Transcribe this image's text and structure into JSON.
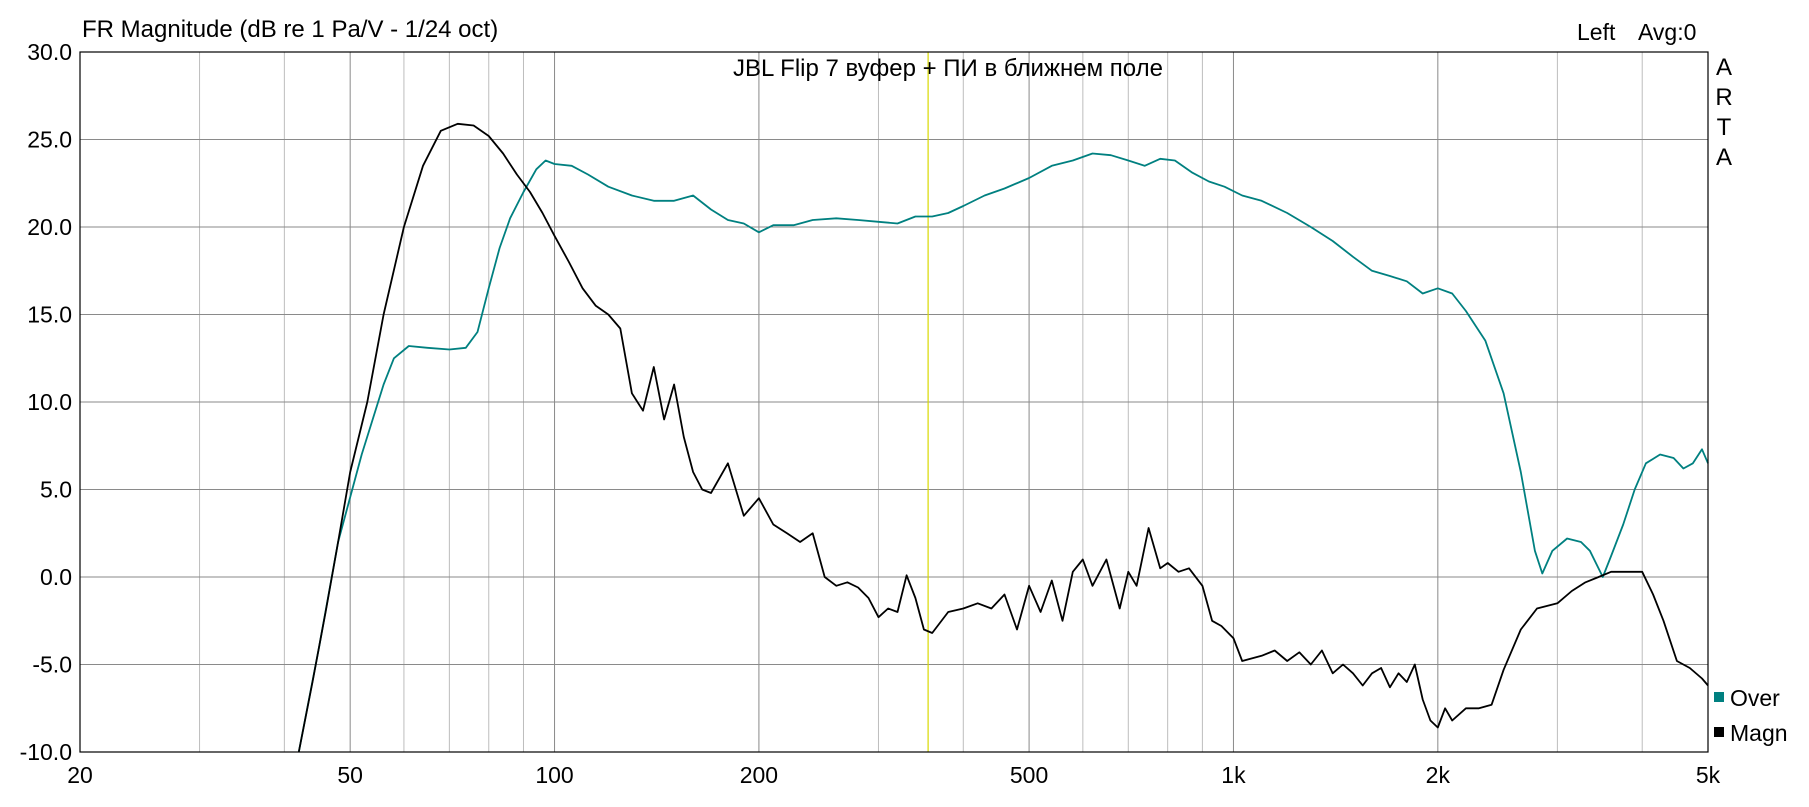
{
  "chart_data": {
    "type": "line",
    "title": "FR Magnitude (dB re 1 Pa/V - 1/24 oct)",
    "annotation": "JBL Flip 7 вуфер + ПИ в ближнем поле",
    "status_left": "Left",
    "status_avg": "Avg:0",
    "logo_letters": [
      "A",
      "R",
      "T",
      "A"
    ],
    "x_scale": "log",
    "xlim": [
      20,
      5000
    ],
    "ylim": [
      -10,
      30
    ],
    "grid": true,
    "x_ticks": [
      20,
      50,
      100,
      200,
      500,
      1000,
      2000,
      5000
    ],
    "x_tick_labels": [
      "20",
      "50",
      "100",
      "200",
      "500",
      "1k",
      "2k",
      "5k"
    ],
    "y_ticks": [
      30,
      25,
      20,
      15,
      10,
      5,
      0,
      -5,
      -10
    ],
    "y_tick_labels": [
      "30.0",
      "25.0",
      "20.0",
      "15.0",
      "10.0",
      "5.0",
      "0.0",
      "-5.0",
      "-10.0"
    ],
    "marker_frequency": 355,
    "marker_color": "#d8d800",
    "legend_position": "bottom-right",
    "series": [
      {
        "name": "Over",
        "color": "#008080",
        "points": [
          [
            42,
            -10
          ],
          [
            45,
            -4
          ],
          [
            48,
            2
          ],
          [
            52,
            7
          ],
          [
            56,
            11
          ],
          [
            58,
            12.5
          ],
          [
            61,
            13.2
          ],
          [
            65,
            13.1
          ],
          [
            70,
            13
          ],
          [
            74,
            13.1
          ],
          [
            77,
            14
          ],
          [
            80,
            16.5
          ],
          [
            83,
            18.8
          ],
          [
            86,
            20.5
          ],
          [
            90,
            22
          ],
          [
            94,
            23.3
          ],
          [
            97,
            23.8
          ],
          [
            100,
            23.6
          ],
          [
            106,
            23.5
          ],
          [
            112,
            23
          ],
          [
            120,
            22.3
          ],
          [
            130,
            21.8
          ],
          [
            140,
            21.5
          ],
          [
            150,
            21.5
          ],
          [
            160,
            21.8
          ],
          [
            170,
            21
          ],
          [
            180,
            20.4
          ],
          [
            190,
            20.2
          ],
          [
            200,
            19.7
          ],
          [
            210,
            20.1
          ],
          [
            225,
            20.1
          ],
          [
            240,
            20.4
          ],
          [
            260,
            20.5
          ],
          [
            280,
            20.4
          ],
          [
            300,
            20.3
          ],
          [
            320,
            20.2
          ],
          [
            340,
            20.6
          ],
          [
            360,
            20.6
          ],
          [
            380,
            20.8
          ],
          [
            400,
            21.2
          ],
          [
            430,
            21.8
          ],
          [
            460,
            22.2
          ],
          [
            500,
            22.8
          ],
          [
            540,
            23.5
          ],
          [
            580,
            23.8
          ],
          [
            620,
            24.2
          ],
          [
            660,
            24.1
          ],
          [
            700,
            23.8
          ],
          [
            740,
            23.5
          ],
          [
            780,
            23.9
          ],
          [
            820,
            23.8
          ],
          [
            870,
            23.1
          ],
          [
            920,
            22.6
          ],
          [
            970,
            22.3
          ],
          [
            1030,
            21.8
          ],
          [
            1100,
            21.5
          ],
          [
            1200,
            20.8
          ],
          [
            1300,
            20
          ],
          [
            1400,
            19.2
          ],
          [
            1500,
            18.3
          ],
          [
            1600,
            17.5
          ],
          [
            1700,
            17.2
          ],
          [
            1800,
            16.9
          ],
          [
            1900,
            16.2
          ],
          [
            2000,
            16.5
          ],
          [
            2100,
            16.2
          ],
          [
            2200,
            15.2
          ],
          [
            2350,
            13.5
          ],
          [
            2500,
            10.5
          ],
          [
            2650,
            6
          ],
          [
            2780,
            1.5
          ],
          [
            2850,
            0.2
          ],
          [
            2950,
            1.5
          ],
          [
            3100,
            2.2
          ],
          [
            3250,
            2
          ],
          [
            3350,
            1.5
          ],
          [
            3500,
            0
          ],
          [
            3600,
            1.2
          ],
          [
            3750,
            3
          ],
          [
            3900,
            5
          ],
          [
            4050,
            6.5
          ],
          [
            4250,
            7
          ],
          [
            4450,
            6.8
          ],
          [
            4600,
            6.2
          ],
          [
            4750,
            6.5
          ],
          [
            4900,
            7.3
          ],
          [
            5000,
            6.5
          ]
        ]
      },
      {
        "name": "Magn",
        "color": "#000000",
        "points": [
          [
            42,
            -10
          ],
          [
            44,
            -6
          ],
          [
            46,
            -2
          ],
          [
            48,
            2
          ],
          [
            50,
            6
          ],
          [
            53,
            10
          ],
          [
            56,
            15
          ],
          [
            60,
            20
          ],
          [
            64,
            23.5
          ],
          [
            68,
            25.5
          ],
          [
            72,
            25.9
          ],
          [
            76,
            25.8
          ],
          [
            80,
            25.2
          ],
          [
            84,
            24.2
          ],
          [
            88,
            23
          ],
          [
            92,
            22
          ],
          [
            96,
            20.8
          ],
          [
            100,
            19.5
          ],
          [
            105,
            18
          ],
          [
            110,
            16.5
          ],
          [
            115,
            15.5
          ],
          [
            120,
            15
          ],
          [
            125,
            14.2
          ],
          [
            130,
            10.5
          ],
          [
            135,
            9.5
          ],
          [
            140,
            12
          ],
          [
            145,
            9
          ],
          [
            150,
            11
          ],
          [
            155,
            8
          ],
          [
            160,
            6
          ],
          [
            165,
            5
          ],
          [
            170,
            4.8
          ],
          [
            180,
            6.5
          ],
          [
            190,
            3.5
          ],
          [
            200,
            4.5
          ],
          [
            210,
            3
          ],
          [
            220,
            2.5
          ],
          [
            230,
            2
          ],
          [
            240,
            2.5
          ],
          [
            250,
            0
          ],
          [
            260,
            -0.5
          ],
          [
            270,
            -0.3
          ],
          [
            280,
            -0.6
          ],
          [
            290,
            -1.2
          ],
          [
            300,
            -2.3
          ],
          [
            310,
            -1.8
          ],
          [
            320,
            -2
          ],
          [
            330,
            0.1
          ],
          [
            340,
            -1.2
          ],
          [
            350,
            -3
          ],
          [
            360,
            -3.2
          ],
          [
            380,
            -2
          ],
          [
            400,
            -1.8
          ],
          [
            420,
            -1.5
          ],
          [
            440,
            -1.8
          ],
          [
            460,
            -1
          ],
          [
            480,
            -3
          ],
          [
            500,
            -0.5
          ],
          [
            520,
            -2
          ],
          [
            540,
            -0.2
          ],
          [
            560,
            -2.5
          ],
          [
            580,
            0.3
          ],
          [
            600,
            1
          ],
          [
            620,
            -0.5
          ],
          [
            650,
            1
          ],
          [
            680,
            -1.8
          ],
          [
            700,
            0.3
          ],
          [
            720,
            -0.5
          ],
          [
            750,
            2.8
          ],
          [
            780,
            0.5
          ],
          [
            800,
            0.8
          ],
          [
            830,
            0.3
          ],
          [
            860,
            0.5
          ],
          [
            900,
            -0.5
          ],
          [
            930,
            -2.5
          ],
          [
            960,
            -2.8
          ],
          [
            1000,
            -3.5
          ],
          [
            1030,
            -4.8
          ],
          [
            1100,
            -4.5
          ],
          [
            1150,
            -4.2
          ],
          [
            1200,
            -4.8
          ],
          [
            1250,
            -4.3
          ],
          [
            1300,
            -5
          ],
          [
            1350,
            -4.2
          ],
          [
            1400,
            -5.5
          ],
          [
            1450,
            -5
          ],
          [
            1500,
            -5.5
          ],
          [
            1550,
            -6.2
          ],
          [
            1600,
            -5.5
          ],
          [
            1650,
            -5.2
          ],
          [
            1700,
            -6.3
          ],
          [
            1750,
            -5.5
          ],
          [
            1800,
            -6
          ],
          [
            1850,
            -5
          ],
          [
            1900,
            -7
          ],
          [
            1950,
            -8.2
          ],
          [
            2000,
            -8.6
          ],
          [
            2050,
            -7.5
          ],
          [
            2100,
            -8.2
          ],
          [
            2200,
            -7.5
          ],
          [
            2300,
            -7.5
          ],
          [
            2400,
            -7.3
          ],
          [
            2500,
            -5.3
          ],
          [
            2650,
            -3
          ],
          [
            2800,
            -1.8
          ],
          [
            3000,
            -1.5
          ],
          [
            3150,
            -0.8
          ],
          [
            3300,
            -0.3
          ],
          [
            3450,
            0
          ],
          [
            3600,
            0.3
          ],
          [
            3800,
            0.3
          ],
          [
            4000,
            0.3
          ],
          [
            4150,
            -1
          ],
          [
            4300,
            -2.5
          ],
          [
            4500,
            -4.8
          ],
          [
            4700,
            -5.2
          ],
          [
            4900,
            -5.8
          ],
          [
            5000,
            -6.2
          ]
        ]
      }
    ]
  }
}
